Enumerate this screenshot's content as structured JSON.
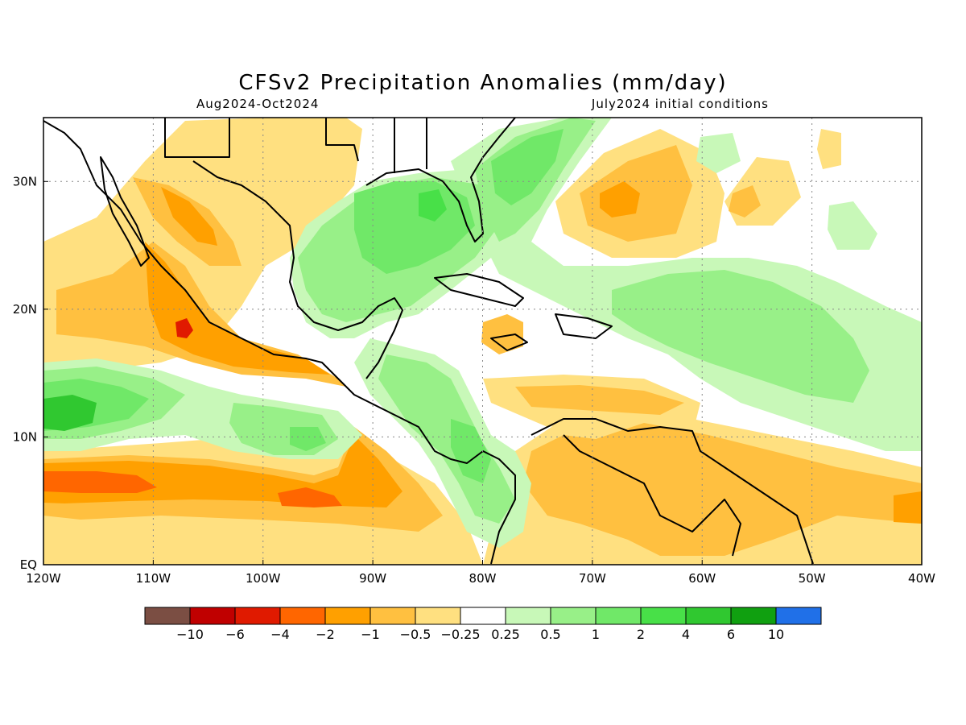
{
  "title": "CFSv2 Precipitation Anomalies (mm/day)",
  "period": "Aug2024-Oct2024",
  "init": "July2024 initial conditions",
  "map": {
    "lon_range": [
      -120,
      -40
    ],
    "lat_range": [
      0,
      35
    ],
    "x_ticks": [
      "120W",
      "110W",
      "100W",
      "90W",
      "80W",
      "70W",
      "60W",
      "50W",
      "40W"
    ],
    "y_ticks": [
      "EQ",
      "10N",
      "20N",
      "30N"
    ],
    "grid": "dotted"
  },
  "colorbar": {
    "colors": [
      "#7b4e43",
      "#c00000",
      "#e01a00",
      "#ff6600",
      "#ffa000",
      "#ffc040",
      "#ffe080",
      "#ffffff",
      "#c8f8b8",
      "#98f088",
      "#70e868",
      "#48e048",
      "#30c830",
      "#10a010",
      "#2070e8"
    ],
    "labels": [
      "-10",
      "-6",
      "-4",
      "-2",
      "-1",
      "-0.5",
      "-0.25",
      "0.25",
      "0.5",
      "1",
      "2",
      "4",
      "6",
      "10"
    ]
  }
}
